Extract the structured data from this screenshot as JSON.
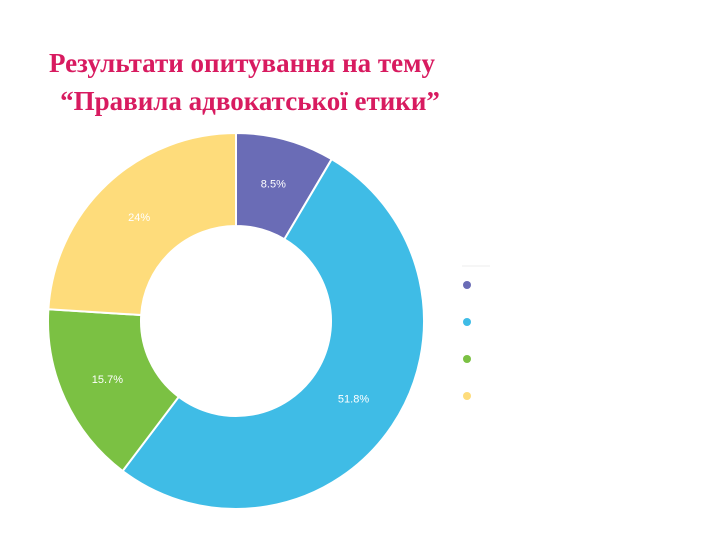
{
  "chart_data": {
    "type": "donut",
    "title_lines": [
      "Результати опитування на тему",
      "“Правила адвокатської етики”"
    ],
    "categories": [
      null,
      null,
      null,
      null
    ],
    "values": [
      8.5,
      51.8,
      15.7,
      24
    ],
    "value_labels": [
      "8.5%",
      "51.8%",
      "15.7%",
      "24%"
    ],
    "colors": [
      "#6a6cb6",
      "#3fbce6",
      "#7bc143",
      "#fedc7b"
    ]
  }
}
